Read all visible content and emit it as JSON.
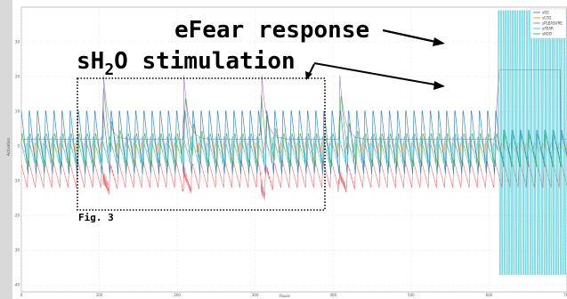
{
  "chart_data": {
    "type": "line",
    "xlabel": "Pause",
    "ylabel": "Activation",
    "xlim": [
      0,
      700
    ],
    "ylim": [
      -42,
      40
    ],
    "x_ticks": [
      "0",
      "100",
      "200",
      "300",
      "400",
      "500",
      "600",
      "700"
    ],
    "y_ticks": [
      "30",
      "20",
      "10",
      "0",
      "-10",
      "-20",
      "-30",
      "-40"
    ],
    "legend_position": "top-right",
    "grid": true,
    "series": [
      {
        "name": "sO2",
        "color": "#1f77b4"
      },
      {
        "name": "sCO2",
        "color": "#ff7f0e"
      },
      {
        "name": "sPLEASURE",
        "color": "#9467bd"
      },
      {
        "name": "eFEAR",
        "color": "#17becf"
      },
      {
        "name": "sH2O",
        "color": "#2ca02c"
      }
    ],
    "stimulation_times": [
      105,
      208,
      308,
      408
    ],
    "fear_window": [
      612,
      700
    ],
    "annotations": {
      "fear_response": "eFear response",
      "stim_main": "sH",
      "stim_sub": "2",
      "stim_rest": "O stimulation",
      "figure_label": "Fig. 3"
    }
  },
  "colors": {
    "sO2": "#1f77b4",
    "sCO2": "#ff7f0e",
    "sPLEASURE": "#9467bd",
    "eFEAR": "#17becf",
    "sH2O": "#2ca02c",
    "red_trace": "#e8555a",
    "marker_box": "#000000"
  }
}
